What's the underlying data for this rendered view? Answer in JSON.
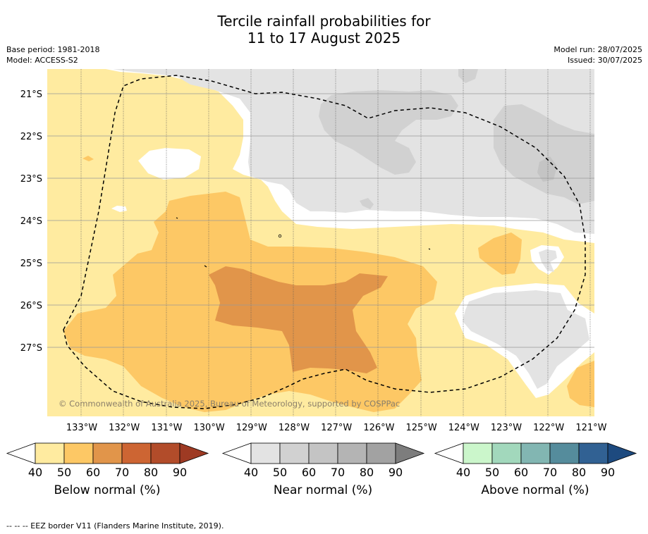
{
  "title_line1": "Tercile rainfall probabilities for",
  "title_line2": "11 to 17 August 2025",
  "base_period": "Base period: 1981-2018",
  "model": "Model: ACCESS-S2",
  "model_run": "Model run: 28/07/2025",
  "issued": "Issued: 30/07/2025",
  "copyright": "© Commonwealth of Australia 2025, Bureau of Meteorology, supported by COSPPac",
  "lat_labels": [
    "21°S",
    "22°S",
    "23°S",
    "24°S",
    "25°S",
    "26°S",
    "27°S"
  ],
  "lon_labels": [
    "133°W",
    "132°W",
    "131°W",
    "130°W",
    "129°W",
    "128°W",
    "127°W",
    "126°W",
    "125°W",
    "124°W",
    "123°W",
    "122°W",
    "121°W"
  ],
  "colorbars": [
    {
      "label": "Below normal (%)",
      "ticks": [
        "40",
        "50",
        "60",
        "70",
        "80",
        "90"
      ],
      "colors": [
        "#ffffff",
        "#ffeba0",
        "#fdc865",
        "#e1954a",
        "#cd6533",
        "#b24c2a",
        "#9e3a23"
      ]
    },
    {
      "label": "Near normal (%)",
      "ticks": [
        "40",
        "50",
        "60",
        "70",
        "80",
        "90"
      ],
      "colors": [
        "#ffffff",
        "#e3e3e3",
        "#d1d1d1",
        "#c4c4c4",
        "#b4b4b4",
        "#a2a2a2",
        "#7d7d7d"
      ]
    },
    {
      "label": "Above normal (%)",
      "ticks": [
        "40",
        "50",
        "60",
        "70",
        "80",
        "90"
      ],
      "colors": [
        "#ffffff",
        "#cbf6cb",
        "#a2d8bc",
        "#82b6b2",
        "#558c9c",
        "#316193",
        "#1d4a7f"
      ]
    }
  ],
  "footer": "--  --  -- EEZ border V11 (Flanders Marine Institute, 2019)."
}
